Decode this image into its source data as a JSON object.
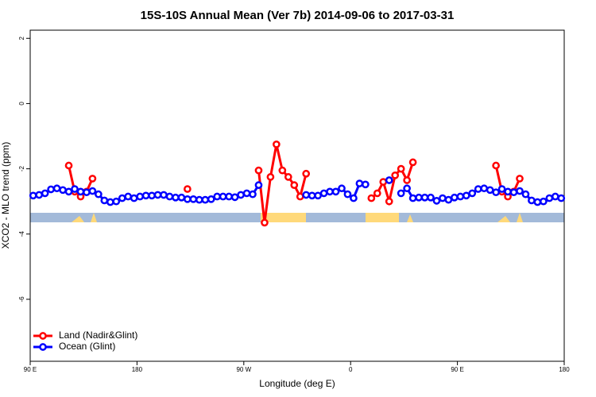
{
  "chart_data": {
    "type": "line",
    "title": "15S-10S Annual Mean (Ver 7b)   2014-09-06 to 2017-03-31",
    "x_label": "Longitude (deg E)",
    "y_label": "XCO2 - MLO trend (ppm)",
    "x": [
      92.5,
      97.5,
      102.5,
      107.5,
      112.5,
      117.5,
      122.5,
      127.5,
      132.5,
      137.5,
      142.5,
      147.5,
      152.5,
      157.5,
      162.5,
      167.5,
      172.5,
      177.5,
      182.5,
      187.5,
      192.5,
      197.5,
      202.5,
      207.5,
      212.5,
      217.5,
      222.5,
      227.5,
      232.5,
      237.5,
      242.5,
      247.5,
      252.5,
      257.5,
      262.5,
      267.5,
      272.5,
      277.5,
      282.5,
      287.5,
      292.5,
      297.5,
      302.5,
      307.5,
      312.5,
      317.5,
      322.5,
      327.5,
      332.5,
      337.5,
      342.5,
      347.5,
      352.5,
      357.5,
      362.5,
      367.5,
      372.5,
      377.5,
      382.5,
      387.5,
      392.5,
      397.5,
      402.5,
      407.5,
      412.5,
      417.5,
      422.5,
      427.5,
      432.5,
      437.5,
      442.5,
      447.5,
      452.5,
      457.5,
      462.5,
      467.5,
      472.5,
      477.5,
      482.5,
      487.5,
      492.5,
      497.5,
      502.5,
      507.5,
      512.5,
      517.5,
      522.5,
      527.5,
      532.5,
      537.5
    ],
    "series": [
      {
        "name": "Land (Nadir&Glint)",
        "color": "#ff0000",
        "values": [
          null,
          null,
          null,
          null,
          null,
          null,
          -1.9,
          -2.7,
          -2.85,
          -2.7,
          -2.3,
          null,
          null,
          null,
          null,
          null,
          null,
          null,
          null,
          null,
          null,
          null,
          null,
          null,
          null,
          null,
          -2.62,
          null,
          null,
          null,
          null,
          null,
          null,
          null,
          null,
          null,
          null,
          null,
          -2.05,
          -3.65,
          -2.25,
          -1.25,
          -2.05,
          -2.25,
          -2.5,
          -2.85,
          -2.15,
          null,
          null,
          null,
          null,
          null,
          null,
          null,
          null,
          null,
          null,
          -2.9,
          -2.75,
          -2.4,
          -3.0,
          -2.2,
          -2.0,
          -2.35,
          -1.8,
          null,
          null,
          null,
          null,
          null,
          null,
          null,
          null,
          null,
          null,
          null,
          null,
          null,
          -1.9,
          -2.7,
          -2.85,
          -2.7,
          -2.3,
          null,
          null,
          null,
          null,
          null,
          null,
          null
        ]
      },
      {
        "name": "Ocean (Glint)",
        "color": "#0000ff",
        "values": [
          -2.82,
          -2.8,
          -2.75,
          -2.63,
          -2.6,
          -2.65,
          -2.7,
          -2.62,
          -2.7,
          -2.72,
          -2.68,
          -2.78,
          -2.97,
          -3.02,
          -3.0,
          -2.9,
          -2.85,
          -2.9,
          -2.85,
          -2.82,
          -2.82,
          -2.8,
          -2.8,
          -2.85,
          -2.88,
          -2.88,
          -2.93,
          -2.93,
          -2.95,
          -2.95,
          -2.93,
          -2.85,
          -2.85,
          -2.85,
          -2.87,
          -2.8,
          -2.75,
          -2.78,
          -2.5,
          null,
          null,
          null,
          null,
          null,
          null,
          null,
          -2.8,
          -2.82,
          -2.82,
          -2.75,
          -2.7,
          -2.7,
          -2.6,
          -2.78,
          -2.9,
          -2.45,
          -2.48,
          null,
          null,
          null,
          -2.35,
          null,
          -2.75,
          -2.6,
          -2.9,
          -2.88,
          -2.88,
          -2.88,
          -2.98,
          -2.9,
          -2.95,
          -2.88,
          -2.85,
          -2.82,
          -2.75,
          -2.62,
          -2.6,
          -2.65,
          -2.72,
          -2.62,
          -2.7,
          -2.72,
          -2.68,
          -2.78,
          -2.97,
          -3.02,
          -3.0,
          -2.9,
          -2.85,
          -2.9
        ]
      }
    ],
    "xlim": [
      90,
      540
    ],
    "xticks": [
      {
        "value": 90,
        "label": "90 E"
      },
      180,
      {
        "value": 270,
        "label": "90 W"
      },
      {
        "value": 360,
        "label": "0"
      },
      {
        "value": 450,
        "label": "90 E"
      },
      {
        "value": 540,
        "label": "180"
      }
    ],
    "ylim": [
      -7.9,
      2.25
    ],
    "yticks": [
      2,
      0,
      -2,
      -4,
      -6
    ],
    "legend": "bottom-left"
  }
}
